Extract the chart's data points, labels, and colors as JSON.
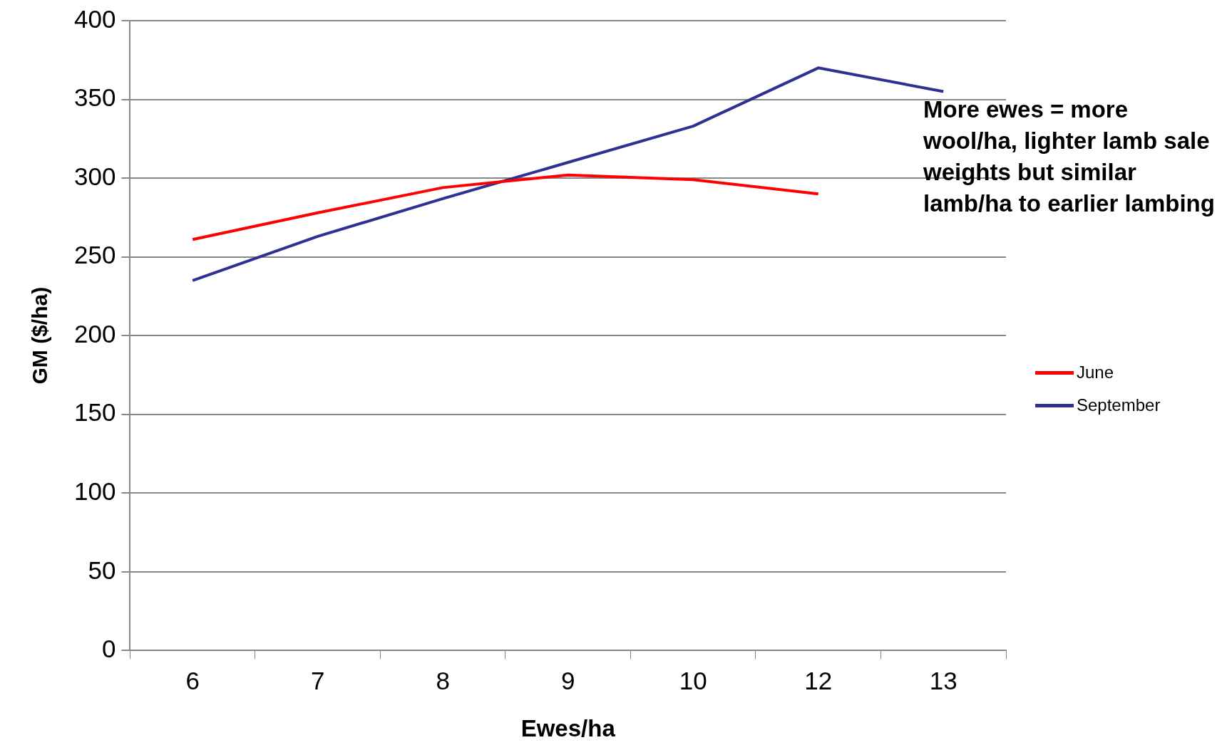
{
  "chart_data": {
    "type": "line",
    "xlabel": "Ewes/ha",
    "ylabel": "GM ($/ha)",
    "categories": [
      "6",
      "7",
      "8",
      "9",
      "10",
      "12",
      "13"
    ],
    "series": [
      {
        "name": "June",
        "color": "#ff0000",
        "values": [
          261,
          278,
          294,
          302,
          299,
          290,
          null
        ]
      },
      {
        "name": "September",
        "color": "#2e3192",
        "values": [
          235,
          263,
          287,
          310,
          333,
          370,
          355
        ]
      }
    ],
    "ylim": [
      0,
      400
    ],
    "yticks": [
      0,
      50,
      100,
      150,
      200,
      250,
      300,
      350,
      400
    ],
    "grid": "y",
    "legend": "right",
    "marker": "none",
    "annotations": [
      "More ewes = more wool/ha, lighter lamb sale weights but similar lamb/ha to earlier lambing"
    ]
  }
}
